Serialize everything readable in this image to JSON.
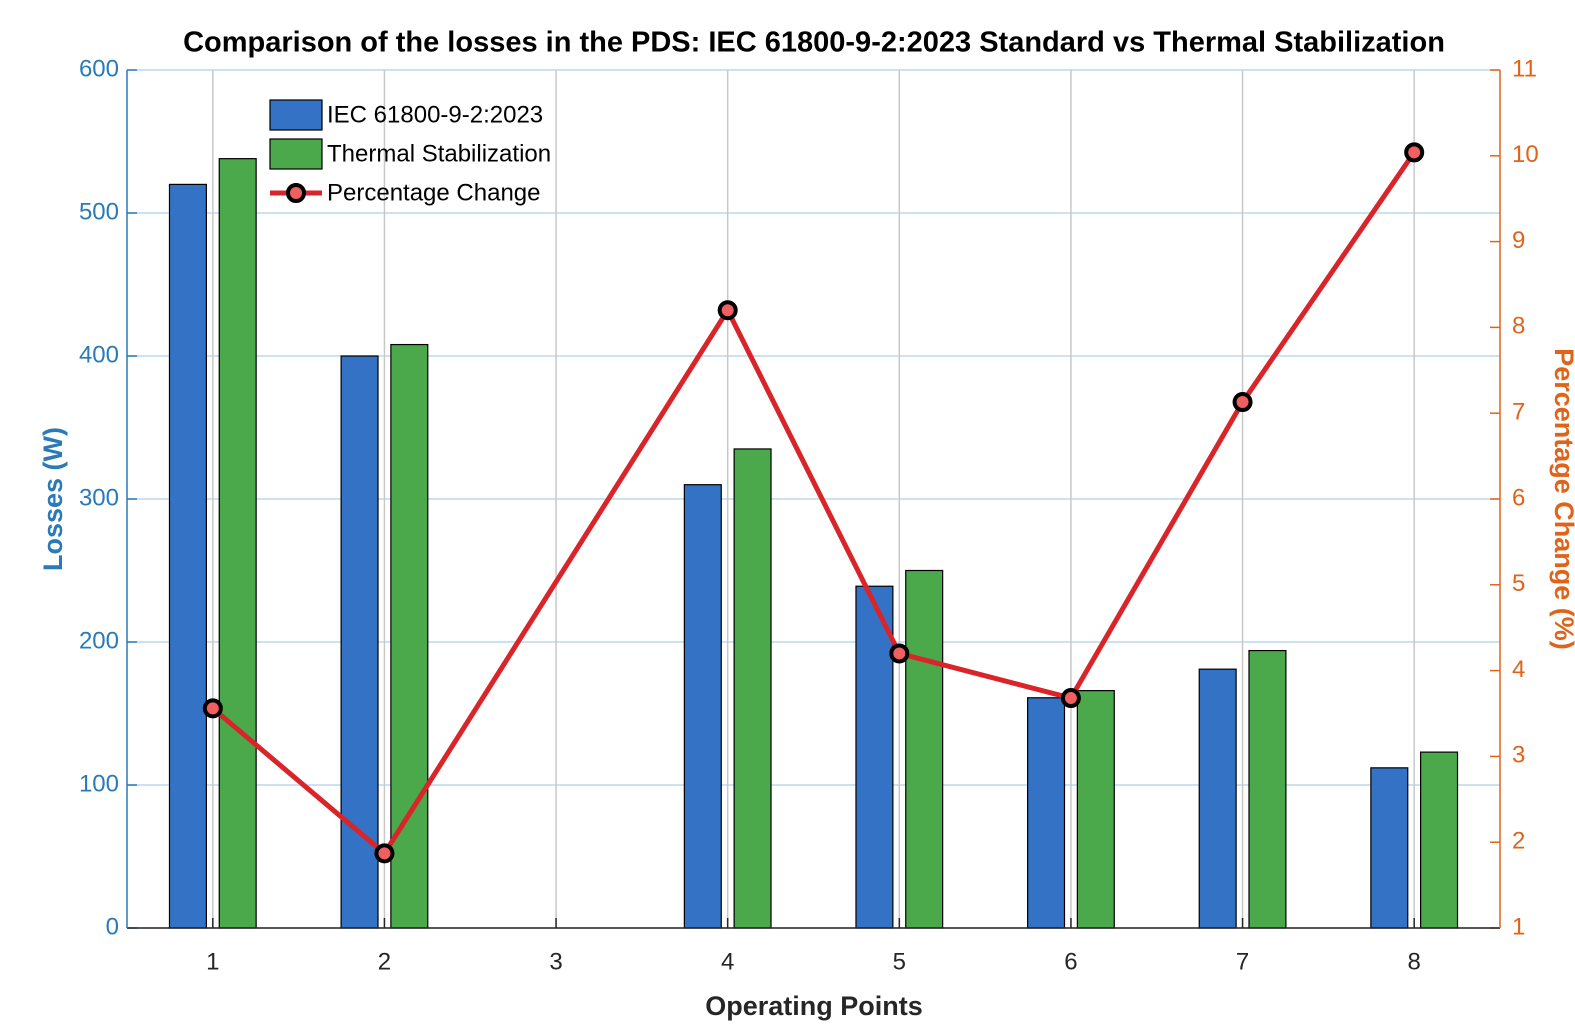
{
  "chart_data": {
    "type": "bar",
    "title": "Comparison of the losses in the PDS: IEC 61800-9-2:2023 Standard vs Thermal Stabilization",
    "xlabel": "Operating Points",
    "ylabel": "Losses (W)",
    "y2label": "Percentage Change (%)",
    "x": [
      1,
      2,
      4,
      5,
      6,
      7,
      8
    ],
    "xlim": [
      0.5,
      8.5
    ],
    "xticks": [
      1,
      2,
      3,
      4,
      5,
      6,
      7,
      8
    ],
    "ylim": [
      0,
      600
    ],
    "yticks": [
      0,
      100,
      200,
      300,
      400,
      500,
      600
    ],
    "y2lim": [
      1,
      11
    ],
    "y2ticks": [
      1,
      2,
      3,
      4,
      5,
      6,
      7,
      8,
      9,
      10,
      11
    ],
    "grid": true,
    "legend": "upper left",
    "ycolor": "#2a7ab8",
    "y2color": "#e0631a",
    "series": [
      {
        "name": "IEC 61800-9-2:2023",
        "type": "bar",
        "color": "#3372c4",
        "values": [
          520,
          400,
          310,
          239,
          161,
          181,
          112
        ]
      },
      {
        "name": "Thermal Stabilization",
        "type": "bar",
        "color": "#4ba84b",
        "values": [
          538,
          408,
          335,
          250,
          166,
          194,
          123
        ]
      },
      {
        "name": "Percentage Change",
        "type": "line",
        "axis": "y2",
        "color": "#d9252a",
        "values": [
          3.56,
          1.87,
          8.2,
          4.2,
          3.68,
          7.13,
          10.04
        ]
      }
    ]
  }
}
